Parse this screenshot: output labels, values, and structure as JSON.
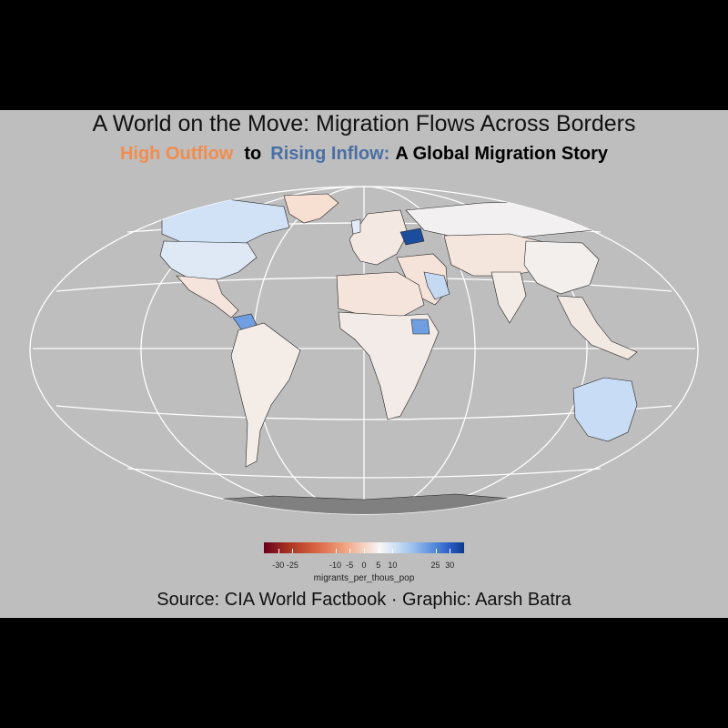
{
  "title": "A World on the Move: Migration Flows Across Borders",
  "subtitle": {
    "outflow": "High Outflow",
    "to": "to",
    "inflow": "Rising Inflow:",
    "rest": "A Global Migration Story"
  },
  "legend": {
    "title": "migrants_per_thous_pop",
    "ticks": [
      "-30",
      "-25",
      "-10",
      "-5",
      "0",
      "5",
      "10",
      "25",
      "30"
    ],
    "tick_values": [
      -30,
      -25,
      -10,
      -5,
      0,
      5,
      10,
      25,
      30
    ],
    "range": [
      -35,
      35
    ]
  },
  "caption": "Source: CIA World Factbook · Graphic: Aarsh Batra",
  "colors": {
    "background": "#000000",
    "panel": "#bebebe",
    "outflow": "#f28c4f",
    "inflow": "#4a6fa5",
    "no_data": "#808080",
    "neutral": "#f2efed"
  }
}
